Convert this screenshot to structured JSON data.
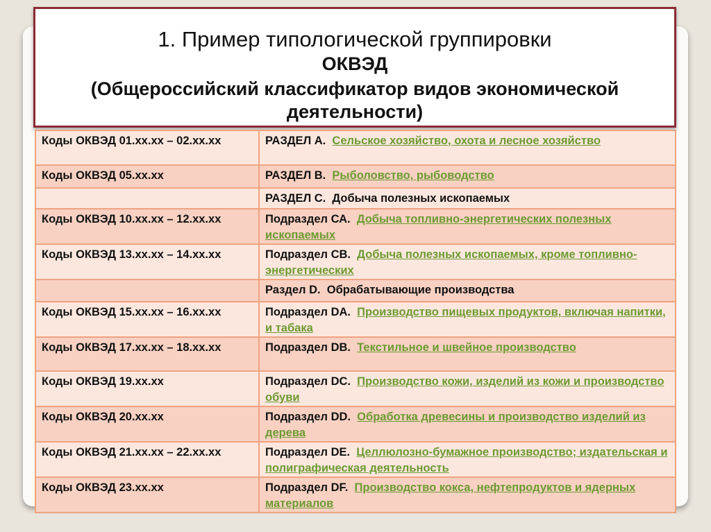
{
  "title": {
    "line1": "1. Пример типологической группировки",
    "line2": "ОКВЭД",
    "line3": "(Общероссийский классификатор видов экономической деятельности)"
  },
  "colors": {
    "border": "#8c2b36",
    "link": "#6d9a32",
    "row_light": "#fce7de",
    "row_dark": "#f8d1c2"
  },
  "rows": [
    {
      "code": "Коды ОКВЭД 01.xx.xx – 02.xx.xx",
      "section": "РАЗДЕЛ А.",
      "desc": "Сельское хозяйство, охота и лесное хозяйство",
      "link": true
    },
    {
      "code": "Коды ОКВЭД 05.xx.xx",
      "section": "РАЗДЕЛ В.",
      "desc": "Рыболовство, рыбоводство",
      "link": true
    },
    {
      "code": "",
      "section": "РАЗДЕЛ С.",
      "desc": "Добыча полезных ископаемых",
      "link": false
    },
    {
      "code": "Коды ОКВЭД 10.xx.xx – 12.xx.xx",
      "section": "Подраздел СА.",
      "desc": "Добыча топливно-энергетических полезных ископаемых",
      "link": true
    },
    {
      "code": "Коды ОКВЭД 13.xx.xx – 14.xx.xx",
      "section": "Подраздел СВ.",
      "desc": "Добыча полезных ископаемых, кроме топливно-энергетических",
      "link": true
    },
    {
      "code": "",
      "section": "Раздел D.",
      "desc": "Обрабатывающие производства",
      "link": false
    },
    {
      "code": "Коды ОКВЭД 15.xx.xx – 16.xx.xx",
      "section": "Подраздел DA.",
      "desc": "Производство пищевых продуктов, включая напитки, и табака",
      "link": true
    },
    {
      "code": "Коды ОКВЭД 17.xx.xx – 18.xx.xx",
      "section": "Подраздел DB.",
      "desc": "Текстильное и швейное производство",
      "link": true
    },
    {
      "code": "Коды ОКВЭД 19.xx.xx",
      "section": "Подраздел DC.",
      "desc": "Производство кожи, изделий из кожи и производство обуви",
      "link": true
    },
    {
      "code": "Коды ОКВЭД 20.xx.xx",
      "section": "Подраздел DD.",
      "desc": "Обработка древесины и производство изделий из дерева",
      "link": true
    },
    {
      "code": "Коды ОКВЭД 21.xx.xx – 22.xx.xx",
      "section": "Подраздел DE.",
      "desc": "Целлюлозно-бумажное производство; издательская и полиграфическая деятельность",
      "link": true
    },
    {
      "code": "Коды ОКВЭД 23.xx.xx",
      "section": "Подраздел DF.",
      "desc": "Производство кокса, нефтепродуктов и ядерных материалов",
      "link": true
    }
  ]
}
